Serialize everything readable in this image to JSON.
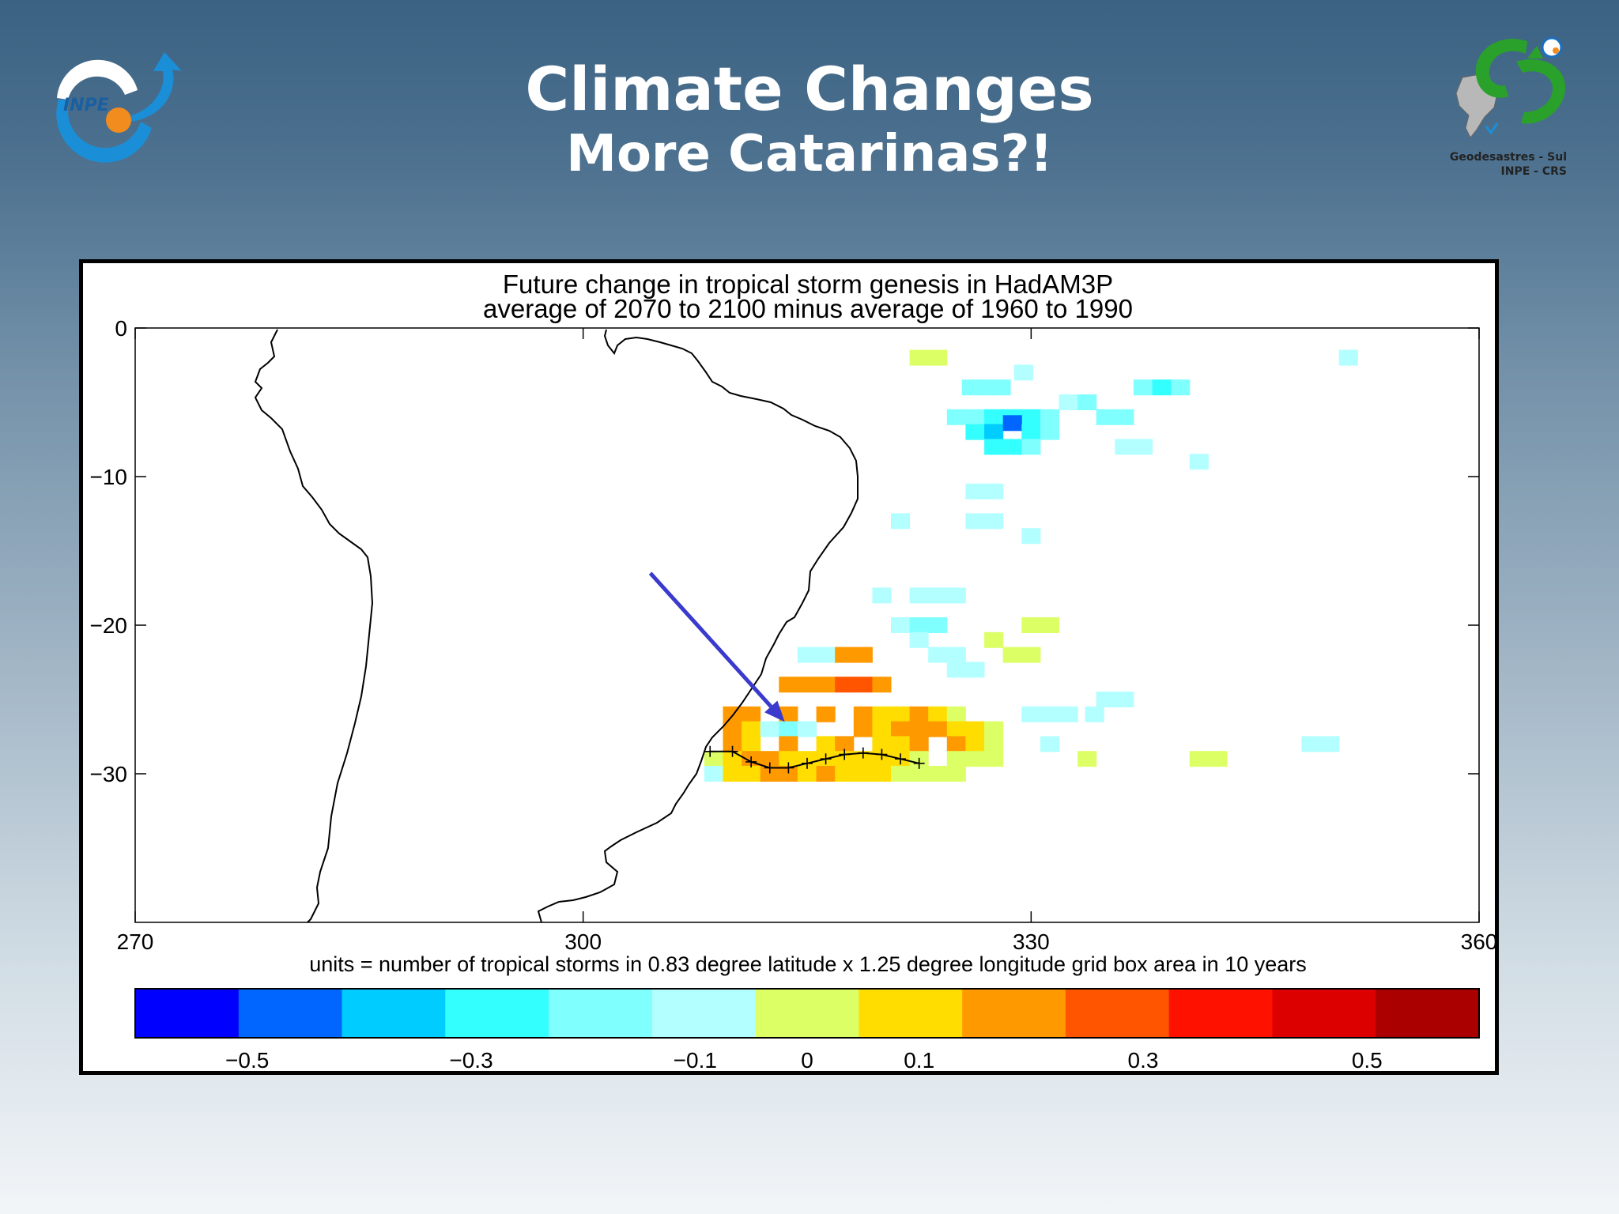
{
  "slide": {
    "title": "Climate Changes",
    "subtitle": "More  Catarinas?!",
    "logo_left_text": "INPE",
    "logo_right_lines": [
      "Geodesastres - Sul",
      "INPE - CRS"
    ]
  },
  "colors": {
    "scale": [
      "#0000ff",
      "#0066ff",
      "#00ccff",
      "#33ffff",
      "#80ffff",
      "#b3ffff",
      "#ddff66",
      "#ffdd00",
      "#ff9900",
      "#ff5500",
      "#ff1100",
      "#dd0000",
      "#aa0000"
    ],
    "arrow": "#3a3acc"
  },
  "chart_data": {
    "type": "heatmap",
    "title": "Future change in tropical storm genesis in HadAM3P",
    "subtitle": "average of 2070 to 2100 minus average of 1960 to 1990",
    "units_label": "units = number of tropical storms in 0.83 degree latitude x 1.25 degree longitude grid box area in 10 years",
    "xlim": [
      270,
      360
    ],
    "ylim": [
      -40,
      0
    ],
    "x_ticks": [
      "270",
      "300",
      "330",
      "360"
    ],
    "y_ticks": [
      "0",
      "−10",
      "−20",
      "−30"
    ],
    "y_tick_values": [
      0,
      -10,
      -20,
      -30
    ],
    "colorbar": {
      "levels": [
        -0.6,
        -0.5,
        -0.4,
        -0.3,
        -0.2,
        -0.1,
        0,
        0.1,
        0.2,
        0.3,
        0.4,
        0.5,
        0.6
      ],
      "tick_labels": [
        "−0.5",
        "−0.3",
        "−0.1",
        "0",
        "0.1",
        "0.3",
        "0.5"
      ],
      "tick_values": [
        -0.5,
        -0.3,
        -0.1,
        0,
        0.1,
        0.3,
        0.5
      ]
    },
    "grid_cells_note": "approximate lon, lat, value of visible cells",
    "cells": [
      [
        322.5,
        -2,
        0.0
      ],
      [
        323.75,
        -2,
        0.0
      ],
      [
        326,
        -4,
        -0.15
      ],
      [
        327,
        -4,
        -0.15
      ],
      [
        328,
        -4,
        -0.15
      ],
      [
        329.5,
        -3,
        -0.1
      ],
      [
        325,
        -6,
        -0.2
      ],
      [
        326.25,
        -6,
        -0.2
      ],
      [
        327.5,
        -6,
        -0.25
      ],
      [
        328.75,
        -6,
        -0.3
      ],
      [
        330,
        -6,
        -0.25
      ],
      [
        331.25,
        -6,
        -0.15
      ],
      [
        326.25,
        -7,
        -0.25
      ],
      [
        327.5,
        -7,
        -0.35
      ],
      [
        328.75,
        -6.4,
        -0.45
      ],
      [
        330,
        -7,
        -0.3
      ],
      [
        331.25,
        -7,
        -0.2
      ],
      [
        327.5,
        -8,
        -0.25
      ],
      [
        328.75,
        -8,
        -0.25
      ],
      [
        330,
        -8,
        -0.2
      ],
      [
        332.5,
        -5,
        -0.1
      ],
      [
        333.75,
        -5,
        -0.15
      ],
      [
        335,
        -6,
        -0.2
      ],
      [
        336.25,
        -6,
        -0.15
      ],
      [
        337.5,
        -4,
        -0.15
      ],
      [
        338.75,
        -4,
        -0.25
      ],
      [
        340,
        -4,
        -0.15
      ],
      [
        336.25,
        -8,
        -0.05
      ],
      [
        337.5,
        -8,
        -0.05
      ],
      [
        341.25,
        -9,
        -0.05
      ],
      [
        351.25,
        -2,
        -0.05
      ],
      [
        326.25,
        -11,
        -0.05
      ],
      [
        327.5,
        -11,
        -0.05
      ],
      [
        321.25,
        -13,
        -0.05
      ],
      [
        326.25,
        -13,
        -0.1
      ],
      [
        327.5,
        -13,
        -0.1
      ],
      [
        330,
        -14,
        -0.05
      ],
      [
        320,
        -18,
        -0.05
      ],
      [
        322.5,
        -18,
        -0.1
      ],
      [
        323.75,
        -18,
        -0.1
      ],
      [
        325,
        -18,
        -0.05
      ],
      [
        321.25,
        -20,
        -0.1
      ],
      [
        322.5,
        -20,
        -0.2
      ],
      [
        323.75,
        -20,
        -0.15
      ],
      [
        322.5,
        -21,
        -0.1
      ],
      [
        323.75,
        -22,
        -0.05
      ],
      [
        325,
        -22,
        -0.05
      ],
      [
        325,
        -23,
        -0.05
      ],
      [
        326.25,
        -23,
        -0.05
      ],
      [
        327.5,
        -21,
        0.05
      ],
      [
        330,
        -20,
        0.05
      ],
      [
        331.25,
        -20,
        0.05
      ],
      [
        328.75,
        -22,
        0.05
      ],
      [
        330,
        -22,
        0.05
      ],
      [
        315,
        -22,
        -0.05
      ],
      [
        316.25,
        -22,
        -0.05
      ],
      [
        317.5,
        -22,
        0.2
      ],
      [
        318.75,
        -22,
        0.25
      ],
      [
        313.75,
        -24,
        0.25
      ],
      [
        315,
        -24,
        0.2
      ],
      [
        316.25,
        -24,
        0.25
      ],
      [
        317.5,
        -24,
        0.3
      ],
      [
        318.75,
        -24,
        0.35
      ],
      [
        320,
        -24,
        0.25
      ],
      [
        310,
        -26,
        0.2
      ],
      [
        311.25,
        -26,
        0.25
      ],
      [
        313.75,
        -26,
        0.2
      ],
      [
        316.25,
        -26,
        0.2
      ],
      [
        318.75,
        -26,
        0.2
      ],
      [
        320,
        -26,
        0.15
      ],
      [
        321.25,
        -26,
        0.15
      ],
      [
        322.5,
        -26,
        0.2
      ],
      [
        323.75,
        -26,
        0.1
      ],
      [
        325,
        -26,
        0.05
      ],
      [
        310,
        -27,
        0.2
      ],
      [
        311.25,
        -27,
        0.15
      ],
      [
        312.5,
        -27,
        -0.05
      ],
      [
        313.75,
        -27,
        -0.15
      ],
      [
        315,
        -27,
        -0.05
      ],
      [
        318.75,
        -27,
        0.25
      ],
      [
        320,
        -27,
        0.15
      ],
      [
        321.25,
        -27,
        0.2
      ],
      [
        322.5,
        -27,
        0.2
      ],
      [
        323.75,
        -27,
        0.2
      ],
      [
        325,
        -27,
        0.15
      ],
      [
        326.25,
        -27,
        0.15
      ],
      [
        327.5,
        -27,
        0.05
      ],
      [
        330,
        -26,
        -0.05
      ],
      [
        331.25,
        -26,
        -0.05
      ],
      [
        332.5,
        -26,
        -0.05
      ],
      [
        335,
        -25,
        -0.05
      ],
      [
        336.25,
        -25,
        -0.05
      ],
      [
        310,
        -28,
        0.2
      ],
      [
        311.25,
        -28,
        0.15
      ],
      [
        313.75,
        -28,
        0.2
      ],
      [
        316.25,
        -28,
        0.15
      ],
      [
        317.5,
        -28,
        0.2
      ],
      [
        320,
        -28,
        0.15
      ],
      [
        321.25,
        -28,
        0.15
      ],
      [
        322.5,
        -28,
        0.25
      ],
      [
        325,
        -28,
        0.2
      ],
      [
        326.25,
        -28,
        0.15
      ],
      [
        327.5,
        -28,
        0.05
      ],
      [
        331.25,
        -28,
        -0.05
      ],
      [
        308.75,
        -29,
        0.05
      ],
      [
        310,
        -29,
        0.1
      ],
      [
        311.25,
        -29,
        0.2
      ],
      [
        312.5,
        -29,
        0.2
      ],
      [
        313.75,
        -29,
        0.15
      ],
      [
        315,
        -29,
        0.15
      ],
      [
        316.25,
        -29,
        0.15
      ],
      [
        317.5,
        -29,
        0.15
      ],
      [
        318.75,
        -29,
        0.15
      ],
      [
        320,
        -29,
        0.15
      ],
      [
        321.25,
        -29,
        0.1
      ],
      [
        322.5,
        -29,
        0.05
      ],
      [
        325,
        -29,
        0.05
      ],
      [
        326.25,
        -29,
        0.05
      ],
      [
        327.5,
        -29,
        0.05
      ],
      [
        308.75,
        -30,
        -0.05
      ],
      [
        310,
        -30,
        0.1
      ],
      [
        311.25,
        -30,
        0.15
      ],
      [
        312.5,
        -30,
        0.2
      ],
      [
        313.75,
        -30,
        0.2
      ],
      [
        315,
        -30,
        0.15
      ],
      [
        316.25,
        -30,
        0.2
      ],
      [
        317.5,
        -30,
        0.15
      ],
      [
        318.75,
        -30,
        0.15
      ],
      [
        320,
        -30,
        0.15
      ],
      [
        321.25,
        -30,
        0.05
      ],
      [
        322.5,
        -30,
        0.05
      ],
      [
        323.75,
        -30,
        0.05
      ],
      [
        325,
        -30,
        0.05
      ],
      [
        333.75,
        -29,
        0.05
      ],
      [
        341.25,
        -29,
        0.05
      ],
      [
        342.5,
        -29,
        0.05
      ],
      [
        348.75,
        -28,
        -0.05
      ],
      [
        350,
        -28,
        -0.05
      ],
      [
        334.25,
        -26,
        -0.05
      ]
    ],
    "storm_track_note": "observed Catarina track near 28-30S",
    "storm_track": [
      [
        308.5,
        -28.5
      ],
      [
        310,
        -28.5
      ],
      [
        311.25,
        -29.2
      ],
      [
        312.5,
        -29.6
      ],
      [
        313.75,
        -29.6
      ],
      [
        315,
        -29.3
      ],
      [
        316.25,
        -29.0
      ],
      [
        317.5,
        -28.7
      ],
      [
        318.75,
        -28.6
      ],
      [
        320,
        -28.7
      ],
      [
        321.25,
        -29.0
      ],
      [
        322.5,
        -29.3
      ]
    ],
    "arrow": {
      "from": [
        304.5,
        -16.5
      ],
      "to": [
        313.5,
        -26.5
      ]
    }
  }
}
